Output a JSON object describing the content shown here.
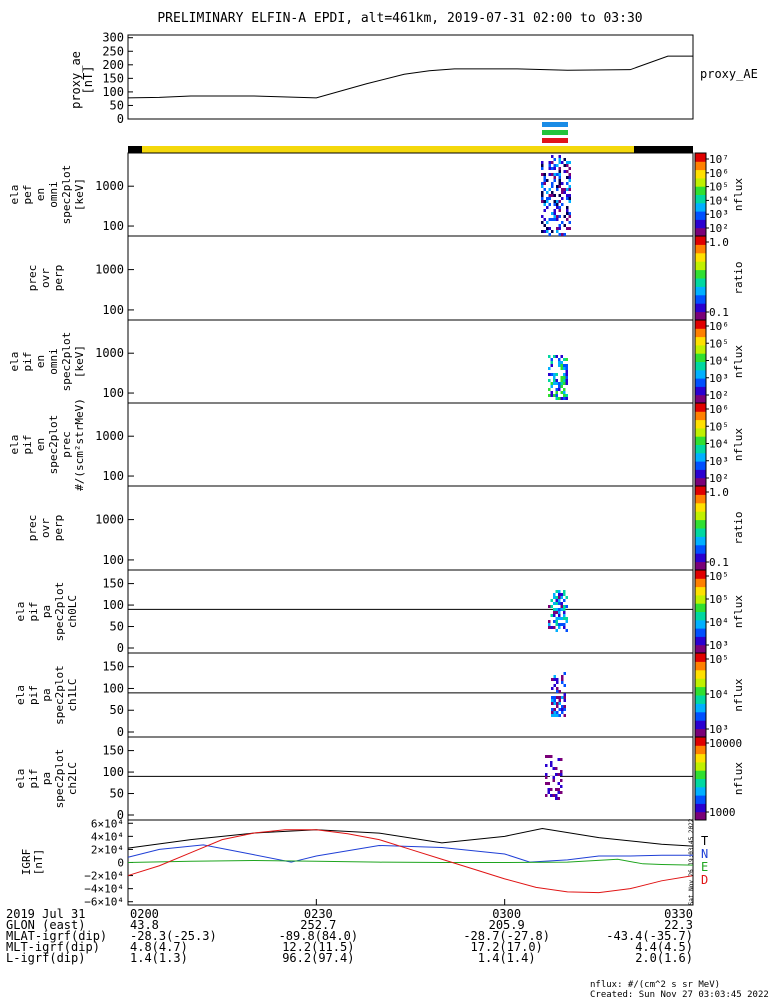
{
  "title": "PRELIMINARY ELFIN-A EPDI, alt=461km, 2019-07-31 02:00 to 03:30",
  "footer": {
    "units": "nflux: #/(cm^2 s sr MeV)",
    "created": "Created: Sun Nov 27 03:03:45 2022",
    "side_stamp": "Sat Nov 26 19:03:45 2022"
  },
  "colors": {
    "frame": "#000000",
    "sci_zone": "#f4d80c",
    "black_bar": "#000000",
    "bar_blue": "#1a8ce6",
    "bar_green": "#22c43a",
    "bar_red": "#e0141a",
    "grf_T": "#000000",
    "grf_N": "#1f3fd6",
    "grf_E": "#1fa51f",
    "grf_D": "#e01414",
    "hline": "#000000"
  },
  "chart_data": [
    {
      "type": "line",
      "id": "proxy_ae",
      "ylabel": "proxy_ae [nT]",
      "legend": "proxy_AE",
      "ylim": [
        0,
        310
      ],
      "yticks": [
        "300",
        "250",
        "200",
        "150",
        "100",
        "50",
        "0"
      ],
      "x_minutes": [
        0,
        5,
        10,
        20,
        30,
        38,
        44,
        48,
        52,
        58,
        62,
        70,
        80,
        86,
        90,
        95,
        100,
        104,
        108,
        112,
        116,
        120,
        124,
        128,
        132,
        136
      ],
      "x": [
        0,
        5,
        10,
        20,
        30,
        38,
        44,
        48,
        52,
        58,
        62,
        70,
        80,
        86,
        90
      ],
      "values": [
        78,
        80,
        85,
        85,
        78,
        130,
        165,
        178,
        185,
        185,
        185,
        180,
        182,
        232,
        232
      ]
    },
    {
      "type": "heatmap",
      "id": "elaperf",
      "ylabel": [
        "ela",
        "pef",
        "en",
        "omni",
        "spec2plot",
        "[keV]"
      ],
      "yticks": [
        "1000",
        "100"
      ],
      "colorbar": {
        "label": "nflux",
        "ticks": [
          "10⁷",
          "10⁶",
          "10⁵",
          "10⁴",
          "10³",
          "10²"
        ]
      }
    },
    {
      "type": "heatmap",
      "id": "prec_perp_e",
      "ylabel": [
        "prec",
        "ovr",
        "perp"
      ],
      "yticks": [
        "1000",
        "100"
      ],
      "colorbar": {
        "label": "ratio",
        "ticks": [
          "1.0",
          "0.1"
        ]
      }
    },
    {
      "type": "heatmap",
      "id": "elapif",
      "ylabel": [
        "ela",
        "pif",
        "en",
        "omni",
        "spec2plot",
        "[keV]"
      ],
      "yticks": [
        "1000",
        "100"
      ],
      "colorbar": {
        "label": "nflux",
        "ticks": [
          "10⁶",
          "10⁵",
          "10⁴",
          "10³",
          "10²"
        ]
      }
    },
    {
      "type": "heatmap",
      "id": "elapif_prec",
      "ylabel": [
        "ela",
        "pif",
        "en",
        "spec2plot",
        "prec",
        "#/(scm²strMeV)"
      ],
      "yticks": [
        "1000",
        "100"
      ],
      "colorbar": {
        "label": "nflux",
        "ticks": [
          "10⁶",
          "10⁵",
          "10⁴",
          "10³",
          "10²"
        ]
      }
    },
    {
      "type": "heatmap",
      "id": "prec_perp_i",
      "ylabel": [
        "prec",
        "ovr",
        "perp"
      ],
      "yticks": [
        "1000",
        "100"
      ],
      "colorbar": {
        "label": "ratio",
        "ticks": [
          "1.0",
          "0.1"
        ]
      }
    },
    {
      "type": "heatmap",
      "id": "pa_ch0",
      "ylabel": [
        "ela",
        "pif",
        "pa",
        "spec2plot",
        "ch0LC"
      ],
      "yticks": [
        "150",
        "100",
        "50",
        "0"
      ],
      "hline": 90,
      "colorbar": {
        "label": "nflux",
        "ticks": [
          "10⁵",
          "10⁵",
          "10⁴",
          "10³"
        ]
      }
    },
    {
      "type": "heatmap",
      "id": "pa_ch1",
      "ylabel": [
        "ela",
        "pif",
        "pa",
        "spec2plot",
        "ch1LC"
      ],
      "yticks": [
        "150",
        "100",
        "50",
        "0"
      ],
      "hline": 90,
      "colorbar": {
        "label": "nflux",
        "ticks": [
          "10⁵",
          "10⁴",
          "10³"
        ]
      }
    },
    {
      "type": "heatmap",
      "id": "pa_ch2",
      "ylabel": [
        "ela",
        "pif",
        "pa",
        "spec2plot",
        "ch2LC"
      ],
      "yticks": [
        "150",
        "100",
        "50",
        "0"
      ],
      "hline": 90,
      "colorbar": {
        "label": "nflux",
        "ticks": [
          "10000",
          "1000"
        ]
      }
    },
    {
      "type": "line",
      "id": "igrf",
      "ylabel": "IGRF [nT]",
      "ylim": [
        -65000,
        65000
      ],
      "yticks": [
        "6×10⁴",
        "4×10⁴",
        "2×10⁴",
        "0",
        "−2×10⁴",
        "−4×10⁴",
        "−6×10⁴"
      ],
      "legend": [
        "T",
        "N",
        "E",
        "D"
      ],
      "series": [
        {
          "name": "T",
          "x": [
            0,
            10,
            20,
            30,
            40,
            50,
            60,
            66,
            75,
            85,
            90
          ],
          "values": [
            22000,
            35000,
            45000,
            50000,
            45000,
            30000,
            40000,
            52000,
            38000,
            28000,
            25000
          ]
        },
        {
          "name": "N",
          "x": [
            0,
            5,
            12,
            20,
            26,
            30,
            40,
            50,
            60,
            64,
            70,
            75,
            80,
            85,
            90
          ],
          "values": [
            8000,
            20000,
            27000,
            12000,
            500,
            10000,
            26000,
            23000,
            13000,
            600,
            4000,
            10000,
            10000,
            11000,
            11000
          ]
        },
        {
          "name": "E",
          "x": [
            0,
            10,
            20,
            30,
            40,
            50,
            60,
            70,
            78,
            82,
            85,
            90
          ],
          "values": [
            0,
            2000,
            3000,
            2000,
            500,
            0,
            0,
            500,
            5000,
            -2000,
            -3000,
            -4000
          ]
        },
        {
          "name": "D",
          "x": [
            0,
            5,
            10,
            15,
            20,
            25,
            30,
            35,
            40,
            45,
            50,
            55,
            60,
            65,
            70,
            75,
            80,
            85,
            90
          ],
          "values": [
            -20000,
            -5000,
            15000,
            35000,
            45000,
            50000,
            50000,
            44000,
            35000,
            20000,
            5000,
            -10000,
            -25000,
            -38000,
            -45000,
            -46000,
            -40000,
            -28000,
            -20000
          ]
        }
      ]
    }
  ],
  "bottom_table": {
    "rows": [
      {
        "label": "2019 Jul 31",
        "values": [
          "0200",
          "0230",
          "0300",
          "0330"
        ]
      },
      {
        "label": "GLON (east)",
        "values": [
          "43.8",
          "252.7",
          "205.9",
          "22.3"
        ]
      },
      {
        "label": "MLAT-igrf(dip)",
        "values": [
          "-28.3(-25.3)",
          "-89.8(84.0)",
          "-28.7(-27.8)",
          "-43.4(-35.7)"
        ]
      },
      {
        "label": "MLT-igrf(dip)",
        "values": [
          "4.8(4.7)",
          "12.2(11.5)",
          "17.2(17.0)",
          "4.4(4.5)"
        ]
      },
      {
        "label": "L-igrf(dip)",
        "values": [
          "1.4(1.3)",
          "96.2(97.4)",
          "1.4(1.4)",
          "2.0(1.6)"
        ]
      }
    ]
  }
}
